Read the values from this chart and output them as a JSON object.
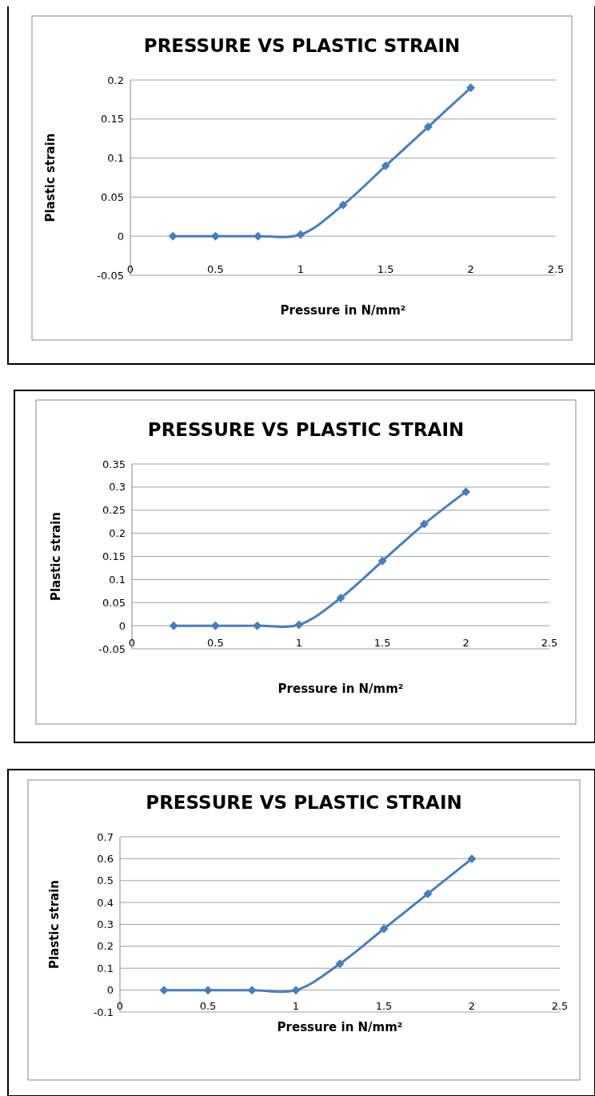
{
  "chart_data": [
    {
      "type": "line",
      "title": "PRESSURE VS PLASTIC STRAIN",
      "xlabel": "Pressure in N/mm²",
      "ylabel": "Plastic strain",
      "x": [
        0.25,
        0.5,
        0.75,
        1,
        1.25,
        1.5,
        1.75,
        2
      ],
      "series": [
        {
          "color": "#4a7ebb",
          "values": [
            0,
            0,
            0,
            0.002,
            0.04,
            0.09,
            0.14,
            0.19
          ]
        }
      ],
      "xlim": [
        0,
        2.5
      ],
      "xticks": [
        0,
        0.5,
        1,
        1.5,
        2,
        2.5
      ],
      "ylim": [
        -0.05,
        0.2
      ],
      "yticks": [
        -0.05,
        0,
        0.05,
        0.1,
        0.15,
        0.2
      ],
      "grid": "y",
      "marker": "diamond",
      "line_style": "solid"
    },
    {
      "type": "line",
      "title": "PRESSURE VS PLASTIC STRAIN",
      "xlabel": "Pressure in N/mm²",
      "ylabel": "Plastic strain",
      "x": [
        0.25,
        0.5,
        0.75,
        1,
        1.25,
        1.5,
        1.75,
        2
      ],
      "series": [
        {
          "color": "#4a7ebb",
          "values": [
            0,
            0,
            0,
            0.002,
            0.06,
            0.14,
            0.22,
            0.29
          ]
        }
      ],
      "xlim": [
        0,
        2.5
      ],
      "xticks": [
        0,
        0.5,
        1,
        1.5,
        2,
        2.5
      ],
      "ylim": [
        -0.05,
        0.35
      ],
      "yticks": [
        -0.05,
        0,
        0.05,
        0.1,
        0.15,
        0.2,
        0.25,
        0.3,
        0.35
      ],
      "grid": "y",
      "marker": "diamond",
      "line_style": "solid"
    },
    {
      "type": "line",
      "title": "PRESSURE VS PLASTIC STRAIN",
      "xlabel": "Pressure in N/mm²",
      "ylabel": "Plastic strain",
      "x": [
        0.25,
        0.5,
        0.75,
        1,
        1.25,
        1.5,
        1.75,
        2
      ],
      "series": [
        {
          "color": "#4a7ebb",
          "values": [
            0,
            0,
            0,
            0,
            0.12,
            0.28,
            0.44,
            0.6
          ]
        }
      ],
      "xlim": [
        0,
        2.5
      ],
      "xticks": [
        0,
        0.5,
        1,
        1.5,
        2,
        2.5
      ],
      "ylim": [
        -0.1,
        0.7
      ],
      "yticks": [
        -0.1,
        0,
        0.1,
        0.2,
        0.3,
        0.4,
        0.5,
        0.6,
        0.7
      ],
      "grid": "y",
      "marker": "diamond",
      "line_style": "solid"
    }
  ]
}
